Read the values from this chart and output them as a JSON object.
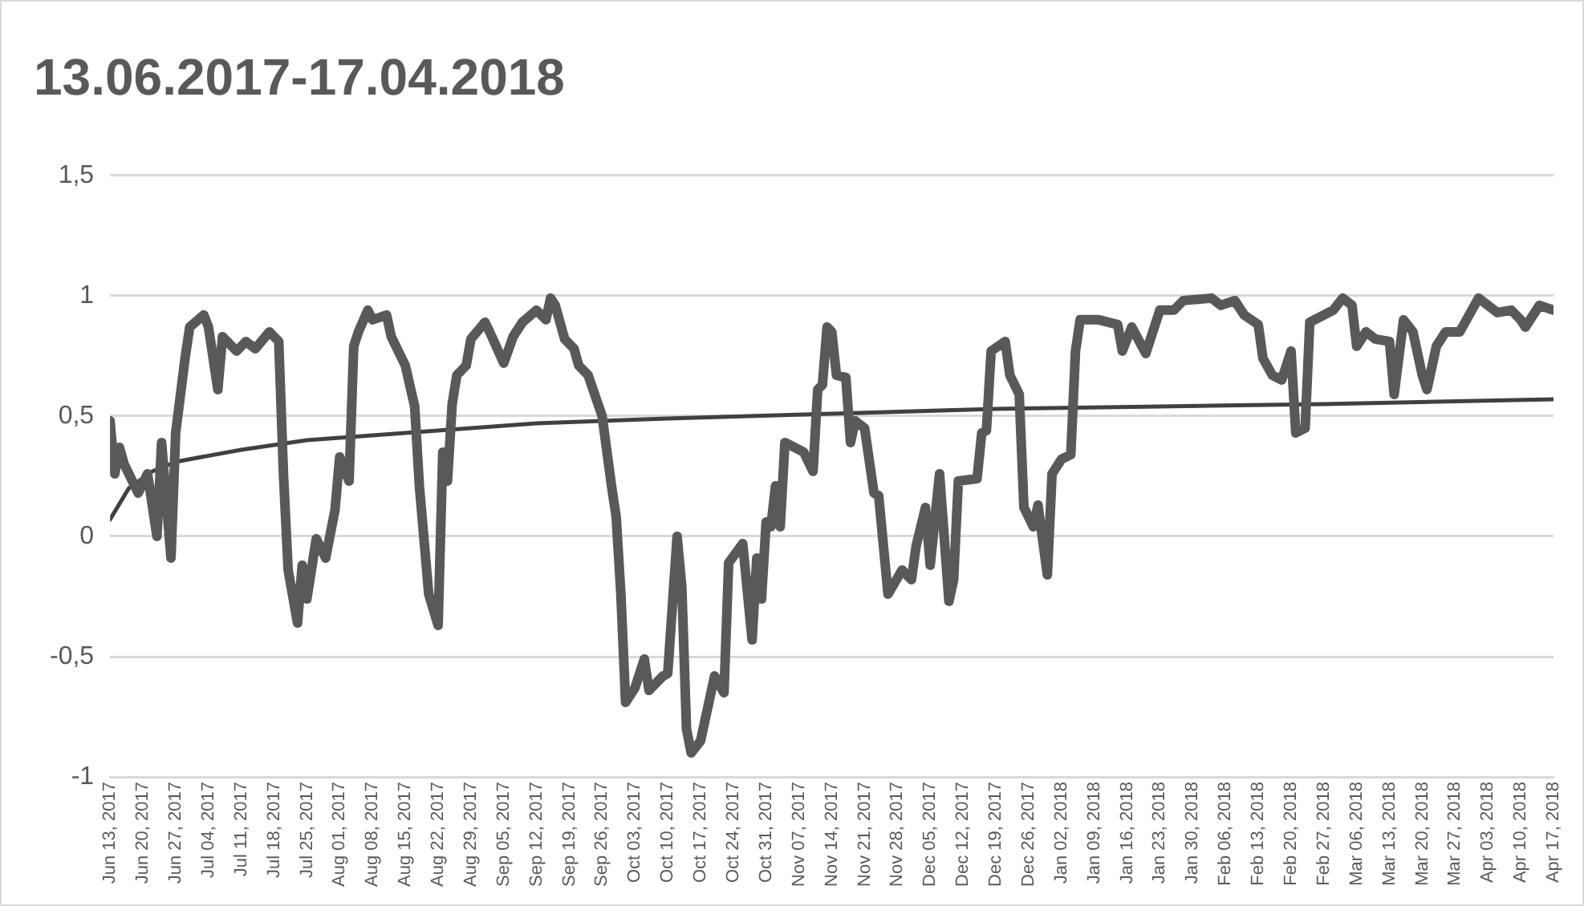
{
  "chart_data": {
    "type": "line",
    "title": "13.06.2017-17.04.2018",
    "xlim": [
      "2017-06-13",
      "2018-04-17"
    ],
    "xticks": [
      {
        "value": "2017-06-13",
        "label": "Jun 13, 2017"
      },
      {
        "value": "2017-06-20",
        "label": "Jun 20, 2017"
      },
      {
        "value": "2017-06-27",
        "label": "Jun 27, 2017"
      },
      {
        "value": "2017-07-04",
        "label": "Jul 04, 2017"
      },
      {
        "value": "2017-07-11",
        "label": "Jul 11, 2017"
      },
      {
        "value": "2017-07-18",
        "label": "Jul 18, 2017"
      },
      {
        "value": "2017-07-25",
        "label": "Jul 25, 2017"
      },
      {
        "value": "2017-08-01",
        "label": "Aug 01, 2017"
      },
      {
        "value": "2017-08-08",
        "label": "Aug 08, 2017"
      },
      {
        "value": "2017-08-15",
        "label": "Aug 15, 2017"
      },
      {
        "value": "2017-08-22",
        "label": "Aug 22, 2017"
      },
      {
        "value": "2017-08-29",
        "label": "Aug 29, 2017"
      },
      {
        "value": "2017-09-05",
        "label": "Sep 05, 2017"
      },
      {
        "value": "2017-09-12",
        "label": "Sep 12, 2017"
      },
      {
        "value": "2017-09-19",
        "label": "Sep 19, 2017"
      },
      {
        "value": "2017-09-26",
        "label": "Sep 26, 2017"
      },
      {
        "value": "2017-10-03",
        "label": "Oct 03, 2017"
      },
      {
        "value": "2017-10-10",
        "label": "Oct 10, 2017"
      },
      {
        "value": "2017-10-17",
        "label": "Oct 17, 2017"
      },
      {
        "value": "2017-10-24",
        "label": "Oct 24, 2017"
      },
      {
        "value": "2017-10-31",
        "label": "Oct 31, 2017"
      },
      {
        "value": "2017-11-07",
        "label": "Nov 07, 2017"
      },
      {
        "value": "2017-11-14",
        "label": "Nov 14, 2017"
      },
      {
        "value": "2017-11-21",
        "label": "Nov 21, 2017"
      },
      {
        "value": "2017-11-28",
        "label": "Nov 28, 2017"
      },
      {
        "value": "2017-12-05",
        "label": "Dec 05, 2017"
      },
      {
        "value": "2017-12-12",
        "label": "Dec 12, 2017"
      },
      {
        "value": "2017-12-19",
        "label": "Dec 19, 2017"
      },
      {
        "value": "2017-12-26",
        "label": "Dec 26, 2017"
      },
      {
        "value": "2018-01-02",
        "label": "Jan 02, 2018"
      },
      {
        "value": "2018-01-09",
        "label": "Jan 09, 2018"
      },
      {
        "value": "2018-01-16",
        "label": "Jan 16, 2018"
      },
      {
        "value": "2018-01-23",
        "label": "Jan 23, 2018"
      },
      {
        "value": "2018-01-30",
        "label": "Jan 30, 2018"
      },
      {
        "value": "2018-02-06",
        "label": "Feb 06, 2018"
      },
      {
        "value": "2018-02-13",
        "label": "Feb 13, 2018"
      },
      {
        "value": "2018-02-20",
        "label": "Feb 20, 2018"
      },
      {
        "value": "2018-02-27",
        "label": "Feb 27, 2018"
      },
      {
        "value": "2018-03-06",
        "label": "Mar 06, 2018"
      },
      {
        "value": "2018-03-13",
        "label": "Mar 13, 2018"
      },
      {
        "value": "2018-03-20",
        "label": "Mar 20, 2018"
      },
      {
        "value": "2018-03-27",
        "label": "Mar 27, 2018"
      },
      {
        "value": "2018-04-03",
        "label": "Apr 03, 2018"
      },
      {
        "value": "2018-04-10",
        "label": "Apr 10, 2018"
      },
      {
        "value": "2018-04-17",
        "label": "Apr 17, 2018"
      }
    ],
    "ylim": [
      -1,
      1.5
    ],
    "yticks": [
      -1,
      {
        "value": -0.5,
        "label": "-0,5"
      },
      0,
      {
        "value": 0.5,
        "label": "0,5"
      },
      1,
      {
        "value": 1.5,
        "label": "1,5"
      }
    ],
    "grid": "y",
    "legend": false,
    "marker": "none",
    "line_style": "solid",
    "series": [
      {
        "type": "line",
        "color": "#595959",
        "x": [
          "2017-06-13",
          "2017-06-14",
          "2017-06-15",
          "2017-06-16",
          "2017-06-19",
          "2017-06-21",
          "2017-06-23",
          "2017-06-24",
          "2017-06-26",
          "2017-06-27",
          "2017-06-29",
          "2017-06-30",
          "2017-07-03",
          "2017-07-04",
          "2017-07-06",
          "2017-07-07",
          "2017-07-10",
          "2017-07-12",
          "2017-07-14",
          "2017-07-17",
          "2017-07-19",
          "2017-07-20",
          "2017-07-21",
          "2017-07-23",
          "2017-07-24",
          "2017-07-25",
          "2017-07-27",
          "2017-07-29",
          "2017-07-31",
          "2017-08-01",
          "2017-08-03",
          "2017-08-04",
          "2017-08-05",
          "2017-08-07",
          "2017-08-08",
          "2017-08-11",
          "2017-08-12",
          "2017-08-15",
          "2017-08-17",
          "2017-08-18",
          "2017-08-20",
          "2017-08-22",
          "2017-08-23",
          "2017-08-24",
          "2017-08-25",
          "2017-08-26",
          "2017-08-28",
          "2017-08-29",
          "2017-09-01",
          "2017-09-02",
          "2017-09-05",
          "2017-09-07",
          "2017-09-09",
          "2017-09-12",
          "2017-09-14",
          "2017-09-15",
          "2017-09-16",
          "2017-09-18",
          "2017-09-20",
          "2017-09-21",
          "2017-09-23",
          "2017-09-26",
          "2017-09-28",
          "2017-09-29",
          "2017-09-30",
          "2017-10-01",
          "2017-10-03",
          "2017-10-05",
          "2017-10-06",
          "2017-10-09",
          "2017-10-10",
          "2017-10-12",
          "2017-10-13",
          "2017-10-14",
          "2017-10-15",
          "2017-10-17",
          "2017-10-20",
          "2017-10-22",
          "2017-10-23",
          "2017-10-26",
          "2017-10-28",
          "2017-10-29",
          "2017-10-30",
          "2017-10-31",
          "2017-11-01",
          "2017-11-02",
          "2017-11-03",
          "2017-11-04",
          "2017-11-08",
          "2017-11-10",
          "2017-11-11",
          "2017-11-12",
          "2017-11-13",
          "2017-11-14",
          "2017-11-15",
          "2017-11-17",
          "2017-11-18",
          "2017-11-19",
          "2017-11-21",
          "2017-11-23",
          "2017-11-24",
          "2017-11-26",
          "2017-11-29",
          "2017-12-01",
          "2017-12-02",
          "2017-12-04",
          "2017-12-05",
          "2017-12-07",
          "2017-12-09",
          "2017-12-10",
          "2017-12-11",
          "2017-12-15",
          "2017-12-16",
          "2017-12-17",
          "2017-12-18",
          "2017-12-21",
          "2017-12-22",
          "2017-12-24",
          "2017-12-25",
          "2017-12-27",
          "2017-12-28",
          "2017-12-30",
          "2017-12-31",
          "2018-01-02",
          "2018-01-04",
          "2018-01-05",
          "2018-01-06",
          "2018-01-10",
          "2018-01-14",
          "2018-01-15",
          "2018-01-17",
          "2018-01-20",
          "2018-01-21",
          "2018-01-23",
          "2018-01-26",
          "2018-01-28",
          "2018-02-03",
          "2018-02-05",
          "2018-02-08",
          "2018-02-10",
          "2018-02-13",
          "2018-02-14",
          "2018-02-16",
          "2018-02-18",
          "2018-02-20",
          "2018-02-21",
          "2018-02-23",
          "2018-02-24",
          "2018-02-27",
          "2018-03-01",
          "2018-03-03",
          "2018-03-05",
          "2018-03-06",
          "2018-03-08",
          "2018-03-10",
          "2018-03-13",
          "2018-03-14",
          "2018-03-16",
          "2018-03-18",
          "2018-03-20",
          "2018-03-21",
          "2018-03-23",
          "2018-03-25",
          "2018-03-28",
          "2018-03-30",
          "2018-04-01",
          "2018-04-03",
          "2018-04-05",
          "2018-04-08",
          "2018-04-10",
          "2018-04-11",
          "2018-04-14",
          "2018-04-17"
        ],
        "values": [
          0.48,
          0.26,
          0.37,
          0.3,
          0.18,
          0.26,
          0.0,
          0.39,
          -0.09,
          0.43,
          0.74,
          0.87,
          0.92,
          0.87,
          0.61,
          0.83,
          0.77,
          0.81,
          0.78,
          0.85,
          0.81,
          0.26,
          -0.14,
          -0.36,
          -0.12,
          -0.26,
          -0.01,
          -0.09,
          0.11,
          0.33,
          0.23,
          0.79,
          0.85,
          0.94,
          0.9,
          0.92,
          0.83,
          0.71,
          0.54,
          0.21,
          -0.24,
          -0.37,
          0.35,
          0.23,
          0.55,
          0.67,
          0.71,
          0.82,
          0.89,
          0.85,
          0.72,
          0.83,
          0.89,
          0.94,
          0.9,
          0.99,
          0.96,
          0.82,
          0.78,
          0.71,
          0.67,
          0.5,
          0.21,
          0.08,
          -0.24,
          -0.69,
          -0.63,
          -0.51,
          -0.64,
          -0.58,
          -0.57,
          0.0,
          -0.21,
          -0.8,
          -0.9,
          -0.85,
          -0.58,
          -0.65,
          -0.11,
          -0.03,
          -0.43,
          -0.09,
          -0.26,
          0.06,
          0.04,
          0.21,
          0.04,
          0.39,
          0.35,
          0.27,
          0.61,
          0.63,
          0.87,
          0.85,
          0.67,
          0.66,
          0.39,
          0.48,
          0.45,
          0.18,
          0.17,
          -0.24,
          -0.14,
          -0.18,
          -0.04,
          0.12,
          -0.12,
          0.26,
          -0.27,
          -0.18,
          0.23,
          0.24,
          0.43,
          0.44,
          0.77,
          0.81,
          0.67,
          0.59,
          0.12,
          0.04,
          0.13,
          -0.16,
          0.26,
          0.32,
          0.34,
          0.77,
          0.9,
          0.9,
          0.88,
          0.77,
          0.87,
          0.76,
          0.82,
          0.94,
          0.94,
          0.98,
          0.99,
          0.96,
          0.98,
          0.92,
          0.88,
          0.74,
          0.67,
          0.65,
          0.77,
          0.43,
          0.45,
          0.89,
          0.92,
          0.94,
          0.99,
          0.96,
          0.79,
          0.85,
          0.82,
          0.81,
          0.59,
          0.9,
          0.85,
          0.67,
          0.61,
          0.79,
          0.85,
          0.85,
          0.92,
          0.99,
          0.96,
          0.93,
          0.94,
          0.9,
          0.87,
          0.96,
          0.94
        ]
      },
      {
        "type": "line",
        "color": "#404040",
        "x": [
          "2017-06-13",
          "2017-06-17",
          "2017-06-22",
          "2017-06-27",
          "2017-07-11",
          "2017-07-25",
          "2017-08-15",
          "2017-09-12",
          "2017-10-10",
          "2017-11-14",
          "2017-12-19",
          "2018-01-23",
          "2018-02-27",
          "2018-04-17"
        ],
        "values": [
          0.07,
          0.2,
          0.27,
          0.31,
          0.36,
          0.4,
          0.43,
          0.47,
          0.49,
          0.51,
          0.53,
          0.54,
          0.55,
          0.57
        ]
      }
    ]
  }
}
